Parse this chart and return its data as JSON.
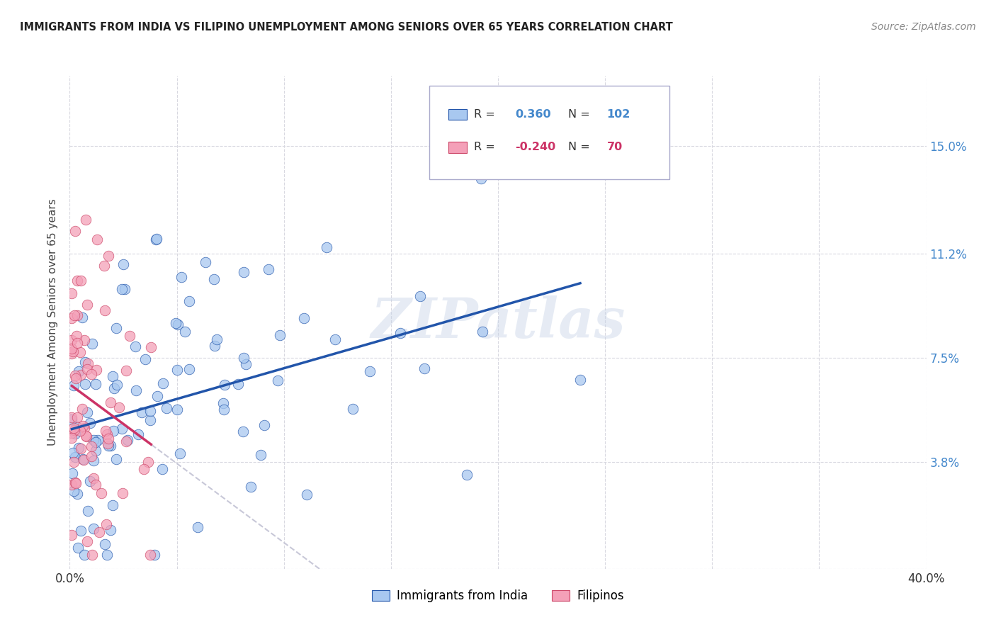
{
  "title": "IMMIGRANTS FROM INDIA VS FILIPINO UNEMPLOYMENT AMONG SENIORS OVER 65 YEARS CORRELATION CHART",
  "source": "Source: ZipAtlas.com",
  "ylabel": "Unemployment Among Seniors over 65 years",
  "xlim": [
    0.0,
    0.4
  ],
  "ylim": [
    0.0,
    0.175
  ],
  "r_india": 0.36,
  "n_india": 102,
  "r_filipino": -0.24,
  "n_filipino": 70,
  "color_india": "#a8c8f0",
  "color_filipino": "#f4a0b8",
  "trendline_india_color": "#2255aa",
  "trendline_filipino_color": "#cc3366",
  "trendline_filipino_dashed_color": "#c8c8d8",
  "watermark": "ZIPatlas",
  "legend_label_india": "Immigrants from India",
  "legend_label_filipino": "Filipinos",
  "ytick_vals": [
    0.0,
    0.038,
    0.075,
    0.112,
    0.15
  ],
  "ytick_labels": [
    "",
    "3.8%",
    "7.5%",
    "11.2%",
    "15.0%"
  ],
  "xtick_vals": [
    0.0,
    0.05,
    0.1,
    0.15,
    0.2,
    0.25,
    0.3,
    0.35,
    0.4
  ],
  "xtick_labels": [
    "0.0%",
    "",
    "",
    "",
    "",
    "",
    "",
    "",
    "40.0%"
  ]
}
